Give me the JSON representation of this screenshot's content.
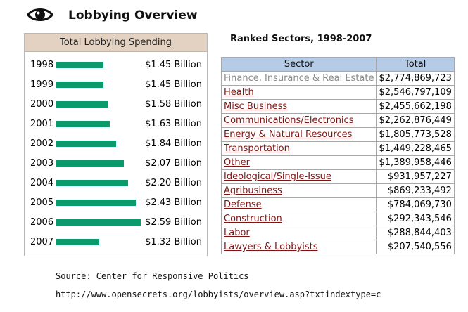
{
  "page": {
    "title": "Lobbying Overview"
  },
  "spending": {
    "header": "Total Lobbying Spending",
    "max_value_billions": 2.59,
    "rows": [
      {
        "year": "1998",
        "amount": "$1.45 Billion",
        "value_billions": 1.45
      },
      {
        "year": "1999",
        "amount": "$1.45 Billion",
        "value_billions": 1.45
      },
      {
        "year": "2000",
        "amount": "$1.58 Billion",
        "value_billions": 1.58
      },
      {
        "year": "2001",
        "amount": "$1.63 Billion",
        "value_billions": 1.63
      },
      {
        "year": "2002",
        "amount": "$1.84 Billion",
        "value_billions": 1.84
      },
      {
        "year": "2003",
        "amount": "$2.07 Billion",
        "value_billions": 2.07
      },
      {
        "year": "2004",
        "amount": "$2.20 Billion",
        "value_billions": 2.2
      },
      {
        "year": "2005",
        "amount": "$2.43 Billion",
        "value_billions": 2.43
      },
      {
        "year": "2006",
        "amount": "$2.59 Billion",
        "value_billions": 2.59
      },
      {
        "year": "2007",
        "amount": "$1.32 Billion",
        "value_billions": 1.32
      }
    ]
  },
  "sectors": {
    "title": "Ranked Sectors, 1998-2007",
    "columns": [
      "Sector",
      "Total"
    ],
    "rows": [
      {
        "sector": "Finance, Insurance & Real Estate",
        "total": "$2,774,869,723",
        "visited": true
      },
      {
        "sector": "Health",
        "total": "$2,546,797,109"
      },
      {
        "sector": "Misc Business",
        "total": "$2,455,662,198"
      },
      {
        "sector": "Communications/Electronics",
        "total": "$2,262,876,449"
      },
      {
        "sector": "Energy & Natural Resources",
        "total": "$1,805,773,528"
      },
      {
        "sector": "Transportation",
        "total": "$1,449,228,465"
      },
      {
        "sector": "Other",
        "total": "$1,389,958,446"
      },
      {
        "sector": "Ideological/Single-Issue",
        "total": "$931,957,227"
      },
      {
        "sector": "Agribusiness",
        "total": "$869,233,492"
      },
      {
        "sector": "Defense",
        "total": "$784,069,730"
      },
      {
        "sector": "Construction",
        "total": "$292,343,546"
      },
      {
        "sector": "Labor",
        "total": "$288,844,403"
      },
      {
        "sector": "Lawyers & Lobbyists",
        "total": "$207,540,556"
      }
    ]
  },
  "footer": {
    "source": "Source: Center for Responsive Politics",
    "url": "http://www.opensecrets.org/lobbyists/overview.asp?txtindextype=c"
  },
  "colors": {
    "bar": "#0b9a6b",
    "panel_header": "#e3d2c2",
    "table_header": "#b6cce6",
    "link": "#7d1515",
    "visited_link": "#8a8a8a"
  },
  "icons": {
    "logo": "eye-icon"
  }
}
